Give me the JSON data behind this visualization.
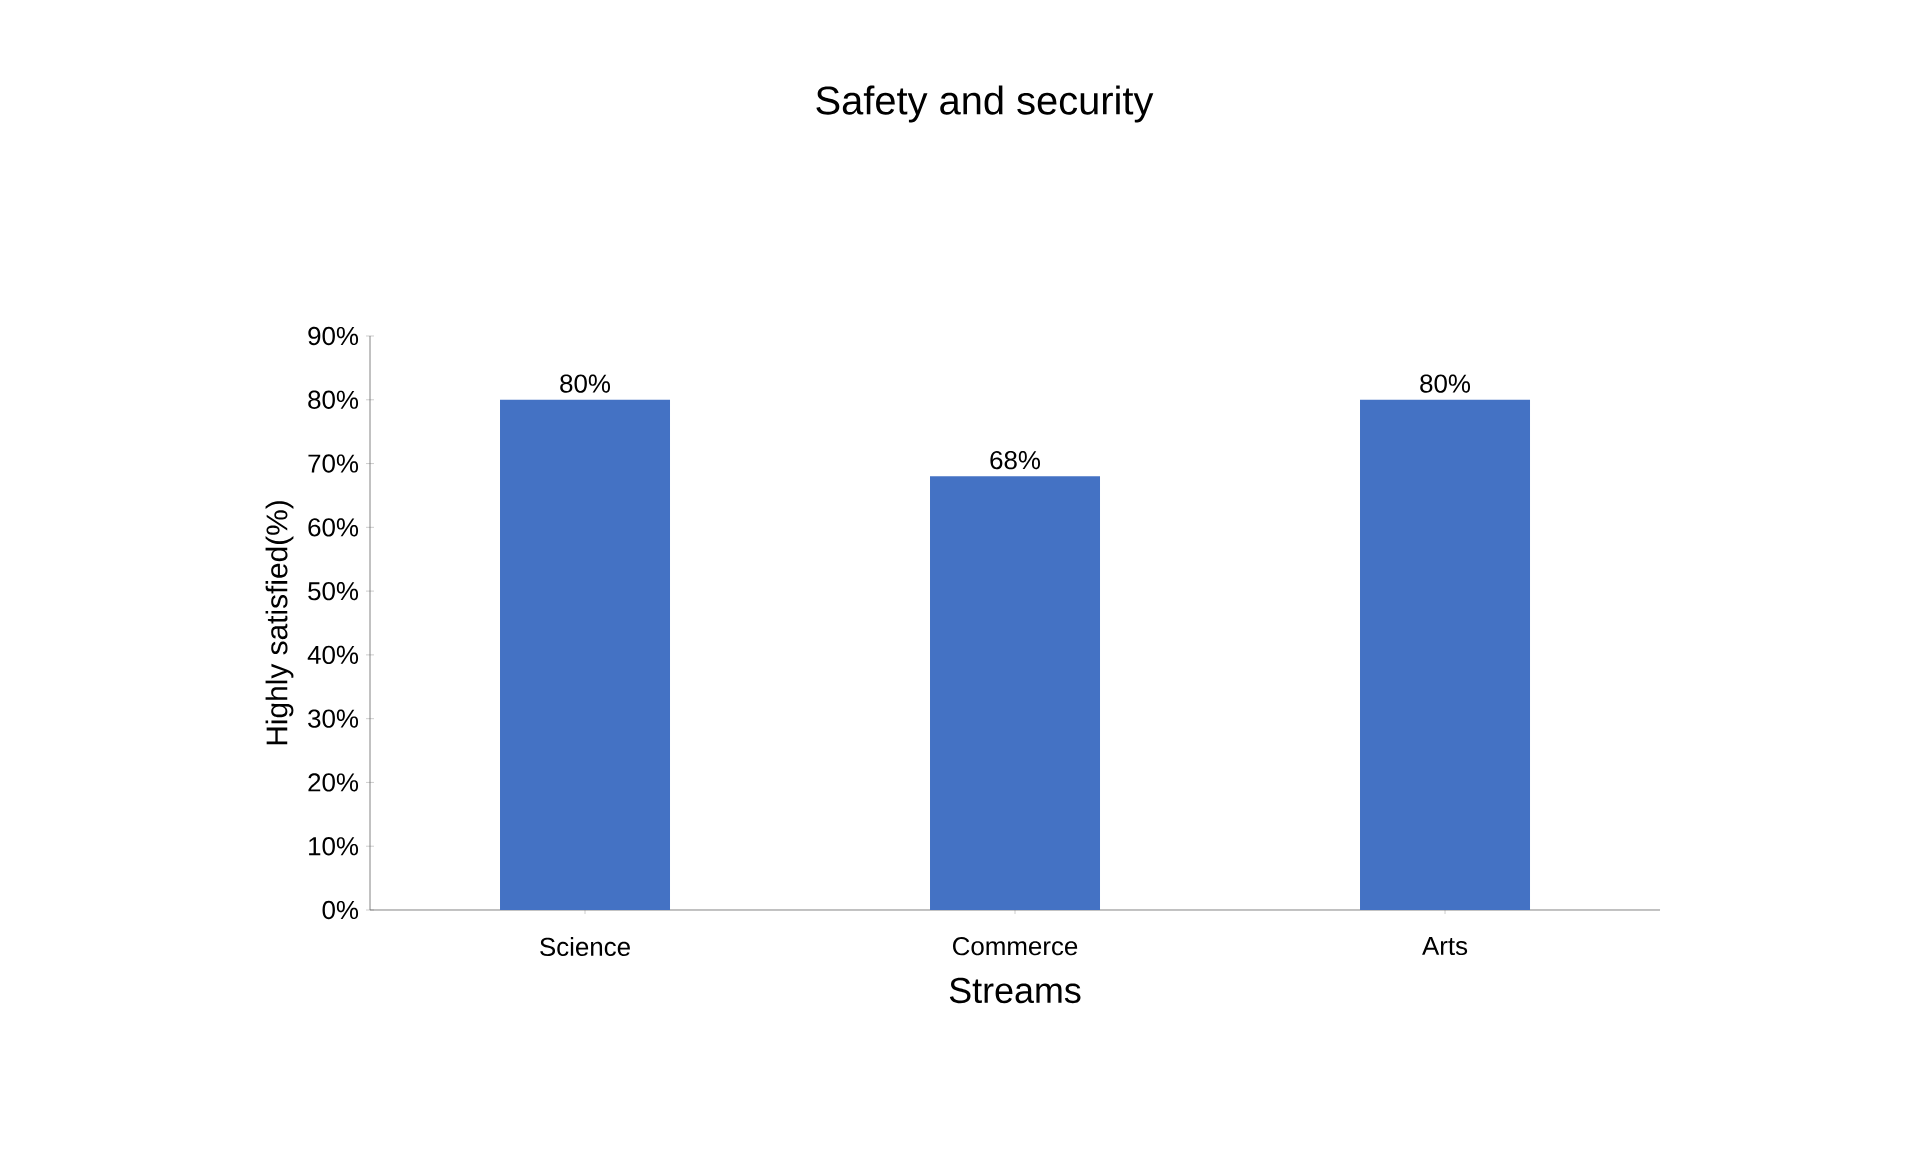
{
  "chart_data": {
    "type": "bar",
    "title": "Safety and security",
    "xlabel": "Streams",
    "ylabel": "Highly satisfied(%)",
    "categories": [
      "Science",
      "Commerce",
      "Arts"
    ],
    "values": [
      80,
      68,
      80
    ],
    "color": "#4472c4",
    "value_labels": [
      "80%",
      "68%",
      "80%"
    ],
    "ylim": [
      0,
      90
    ],
    "yticks": [
      {
        "value": 0,
        "label": "0%"
      },
      {
        "value": 10,
        "label": "10%"
      },
      {
        "value": 20,
        "label": "20%"
      },
      {
        "value": 30,
        "label": "30%"
      },
      {
        "value": 40,
        "label": "40%"
      },
      {
        "value": 50,
        "label": "50%"
      },
      {
        "value": 60,
        "label": "60%"
      },
      {
        "value": 70,
        "label": "70%"
      },
      {
        "value": 80,
        "label": "80%"
      },
      {
        "value": 90,
        "label": "90%"
      }
    ],
    "grid": false
  }
}
